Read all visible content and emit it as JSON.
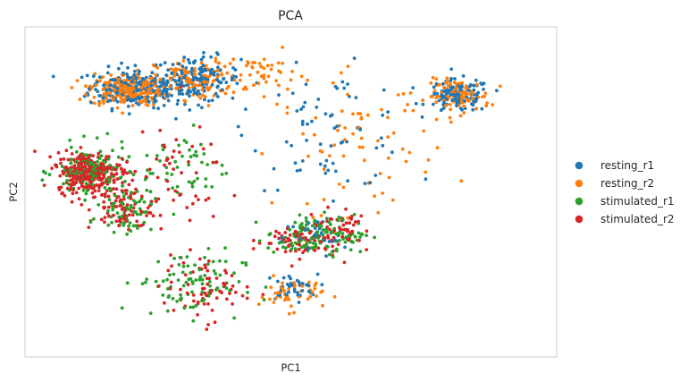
{
  "chart_data": {
    "type": "scatter",
    "title": "PCA",
    "xlabel": "PC1",
    "ylabel": "PC2",
    "xlim": [
      -1.0,
      1.0
    ],
    "ylim": [
      -1.0,
      1.0
    ],
    "grid": false,
    "ticks_visible": false,
    "legend_position": "right",
    "series": [
      {
        "name": "resting_r1",
        "color": "#1f77b4",
        "clusters": [
          {
            "cx": -0.58,
            "cy": 0.63,
            "sx": 0.09,
            "sy": 0.06,
            "n": 220
          },
          {
            "cx": -0.35,
            "cy": 0.68,
            "sx": 0.08,
            "sy": 0.07,
            "n": 140
          },
          {
            "cx": 0.63,
            "cy": 0.58,
            "sx": 0.06,
            "sy": 0.05,
            "n": 110
          },
          {
            "cx": 0.15,
            "cy": 0.38,
            "sx": 0.15,
            "sy": 0.18,
            "n": 70
          },
          {
            "cx": 0.0,
            "cy": -0.58,
            "sx": 0.05,
            "sy": 0.04,
            "n": 40
          },
          {
            "cx": 0.09,
            "cy": -0.28,
            "sx": 0.06,
            "sy": 0.06,
            "n": 30
          }
        ]
      },
      {
        "name": "resting_r2",
        "color": "#ff7f0e",
        "clusters": [
          {
            "cx": -0.62,
            "cy": 0.62,
            "sx": 0.07,
            "sy": 0.05,
            "n": 230
          },
          {
            "cx": -0.35,
            "cy": 0.68,
            "sx": 0.08,
            "sy": 0.06,
            "n": 130
          },
          {
            "cx": 0.63,
            "cy": 0.58,
            "sx": 0.06,
            "sy": 0.05,
            "n": 110
          },
          {
            "cx": 0.25,
            "cy": 0.28,
            "sx": 0.15,
            "sy": 0.2,
            "n": 70
          },
          {
            "cx": 0.0,
            "cy": -0.62,
            "sx": 0.06,
            "sy": 0.05,
            "n": 50
          },
          {
            "cx": -0.1,
            "cy": 0.72,
            "sx": 0.06,
            "sy": 0.06,
            "n": 40
          }
        ]
      },
      {
        "name": "stimulated_r1",
        "color": "#2ca02c",
        "clusters": [
          {
            "cx": -0.75,
            "cy": 0.12,
            "sx": 0.07,
            "sy": 0.08,
            "n": 130
          },
          {
            "cx": -0.62,
            "cy": -0.1,
            "sx": 0.05,
            "sy": 0.07,
            "n": 70
          },
          {
            "cx": -0.38,
            "cy": -0.55,
            "sx": 0.1,
            "sy": 0.1,
            "n": 90
          },
          {
            "cx": 0.05,
            "cy": -0.28,
            "sx": 0.07,
            "sy": 0.06,
            "n": 80
          },
          {
            "cx": 0.18,
            "cy": -0.25,
            "sx": 0.06,
            "sy": 0.06,
            "n": 50
          },
          {
            "cx": -0.4,
            "cy": 0.15,
            "sx": 0.08,
            "sy": 0.12,
            "n": 50
          }
        ]
      },
      {
        "name": "stimulated_r2",
        "color": "#d62728",
        "clusters": [
          {
            "cx": -0.76,
            "cy": 0.12,
            "sx": 0.06,
            "sy": 0.06,
            "n": 300
          },
          {
            "cx": -0.64,
            "cy": -0.1,
            "sx": 0.06,
            "sy": 0.07,
            "n": 80
          },
          {
            "cx": -0.33,
            "cy": -0.58,
            "sx": 0.08,
            "sy": 0.1,
            "n": 70
          },
          {
            "cx": 0.02,
            "cy": -0.3,
            "sx": 0.08,
            "sy": 0.05,
            "n": 70
          },
          {
            "cx": 0.18,
            "cy": -0.22,
            "sx": 0.06,
            "sy": 0.06,
            "n": 50
          },
          {
            "cx": -0.45,
            "cy": 0.1,
            "sx": 0.1,
            "sy": 0.15,
            "n": 50
          }
        ]
      }
    ]
  }
}
